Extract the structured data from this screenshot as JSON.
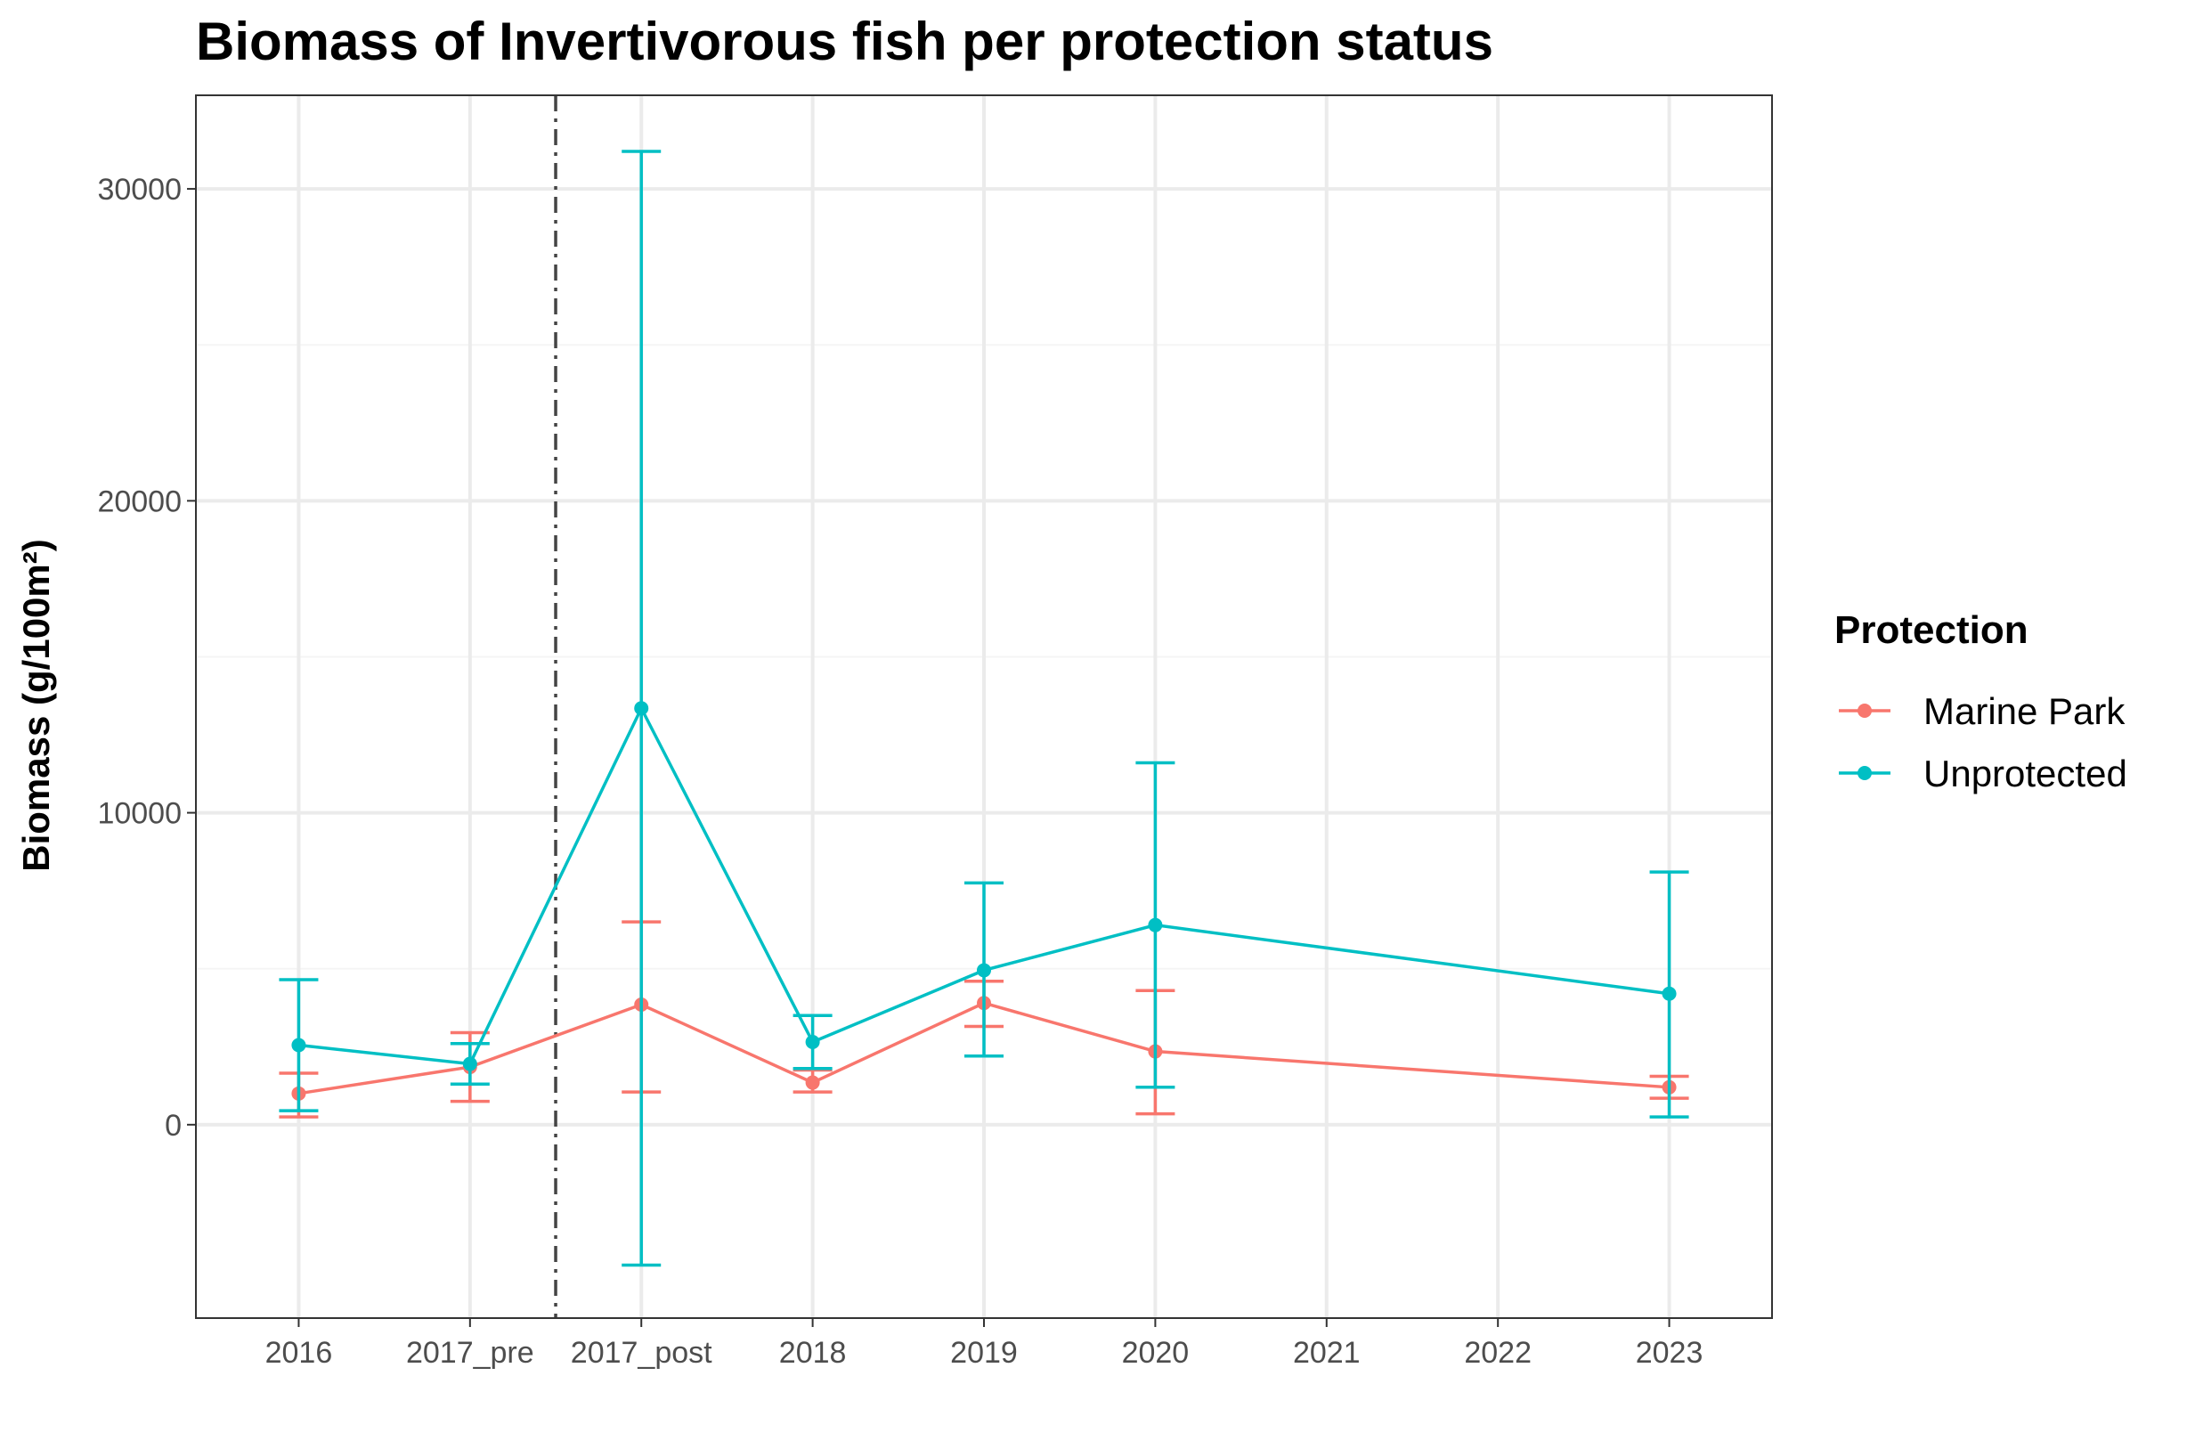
{
  "chart_data": {
    "type": "line",
    "title": "Biomass of Invertivorous fish per protection status",
    "xlabel": "",
    "ylabel": "Biomass (g/100m²)",
    "categories": [
      "2016",
      "2017_pre",
      "2017_post",
      "2018",
      "2019",
      "2020",
      "2021",
      "2022",
      "2023"
    ],
    "ylim": [
      -6200,
      33000
    ],
    "yticks": [
      0,
      10000,
      20000,
      30000
    ],
    "ytick_labels": [
      "0",
      "10000",
      "20000",
      "30000"
    ],
    "grid": true,
    "vline_between": [
      "2017_pre",
      "2017_post"
    ],
    "vline_style": "dashdot",
    "legend": {
      "title": "Protection",
      "position": "right"
    },
    "series": [
      {
        "name": "Marine Park",
        "color": "#F8766D",
        "points": [
          {
            "x": "2016",
            "y": 1000,
            "ymin": 250,
            "ymax": 1650
          },
          {
            "x": "2017_pre",
            "y": 1850,
            "ymin": 750,
            "ymax": 2950
          },
          {
            "x": "2017_post",
            "y": 3850,
            "ymin": 1050,
            "ymax": 6500
          },
          {
            "x": "2018",
            "y": 1350,
            "ymin": 1050,
            "ymax": 1750
          },
          {
            "x": "2019",
            "y": 3900,
            "ymin": 3150,
            "ymax": 4600
          },
          {
            "x": "2020",
            "y": 2350,
            "ymin": 350,
            "ymax": 4300
          },
          {
            "x": "2023",
            "y": 1200,
            "ymin": 850,
            "ymax": 1550
          }
        ]
      },
      {
        "name": "Unprotected",
        "color": "#00BFC4",
        "points": [
          {
            "x": "2016",
            "y": 2550,
            "ymin": 450,
            "ymax": 4650
          },
          {
            "x": "2017_pre",
            "y": 1950,
            "ymin": 1300,
            "ymax": 2600
          },
          {
            "x": "2017_post",
            "y": 13350,
            "ymin": -4500,
            "ymax": 31200
          },
          {
            "x": "2018",
            "y": 2650,
            "ymin": 1800,
            "ymax": 3500
          },
          {
            "x": "2019",
            "y": 4950,
            "ymin": 2200,
            "ymax": 7750
          },
          {
            "x": "2020",
            "y": 6400,
            "ymin": 1200,
            "ymax": 11600
          },
          {
            "x": "2023",
            "y": 4200,
            "ymin": 250,
            "ymax": 8100
          }
        ]
      }
    ]
  }
}
